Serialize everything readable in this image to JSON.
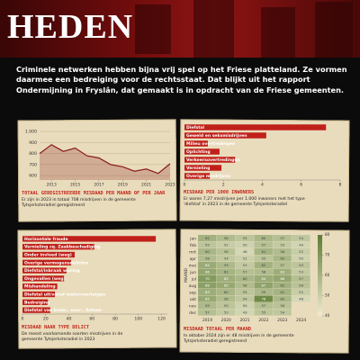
{
  "header": {
    "title": "HEDEN"
  },
  "intro": "Criminele netwerken hebben bijna vrij spel op het Friese platteland. Ze vormen daarmee een bedreiging voor de rechtsstaat. Dat blijkt uit het rapport Ondermijning in Fryslân, dat gemaakt is in opdracht van de Friese gemeenten.",
  "chart_data": [
    {
      "type": "area",
      "title": "TOTAAL GEREGISTREERDE MISDAAD PER MAAND OF PER JAAR",
      "subtitle": "Er zijn in 2023 in totaal 708 misdrijven in de gemeente Tytsjerksteradiel geregistreerd",
      "x": [
        2012,
        2013,
        2014,
        2015,
        2016,
        2017,
        2018,
        2019,
        2020,
        2021,
        2022,
        2023
      ],
      "values": [
        800,
        880,
        820,
        850,
        780,
        760,
        700,
        680,
        640,
        660,
        620,
        708
      ],
      "color": "#8b1a1a",
      "xlim": [
        2012,
        2023
      ],
      "xticks": [
        2013,
        2015,
        2017,
        2019,
        2021,
        2023
      ],
      "ylim": [
        560,
        1050
      ],
      "yticks": [
        600,
        700,
        800,
        900,
        {
          "value": 1000,
          "label": "1.000"
        }
      ],
      "grid": true
    },
    {
      "type": "hbar",
      "title": "MISDAAD PER 1000 INWONERS",
      "subtitle": "Er waren 7,27 misdrijven per 1.000 inwoners met het type 'diefstal' in 2023 in de gemeente Tytsjerksteradiel",
      "categories": [
        "Diefstal",
        "Geweld en seksmisdrijven",
        "Milieu overtredingen",
        "Oplichting",
        "Verkeersovertredingen",
        "Vernieling",
        "Overige misdrijven"
      ],
      "values": [
        7.27,
        4.2,
        1.2,
        1.8,
        2.6,
        1.9,
        1.3
      ],
      "color": "#c0201a",
      "xlim": [
        0,
        8
      ],
      "xticks": [
        0,
        2,
        4,
        6,
        8
      ]
    },
    {
      "type": "hbar",
      "title": "MISDAAD NAAR TYPE DELICT",
      "subtitle": "De meest voorkomende soorten misdrijven in de gemeente Tytsjerksteradiel in 2023",
      "categories": [
        "Horizontale fraude",
        "Vernieling cq. Zaakbeschadiging",
        "Onder invloed (weg)",
        "Overige vermogensdelicten",
        "Diefstal/inbraak woning",
        "Ongevallen (weg)",
        "Mishandeling",
        "Diefstal uit/vanaf motorvoertuigen",
        "Bedreiging",
        "Diefstal van brom-, snor-, fietsen"
      ],
      "values": [
        115,
        62,
        45,
        42,
        38,
        36,
        30,
        28,
        22,
        24
      ],
      "color": "#c0201a",
      "xlim": [
        0,
        125
      ],
      "xticks": [
        0,
        20,
        40,
        60,
        80,
        100,
        120
      ]
    },
    {
      "type": "heatmap",
      "title": "MISDAAD TOTAAL PER MAAND",
      "subtitle": "In oktober 2024 zijn er 48 misdrijven in de gemeente Tytsjerksteradiel geregistreerd",
      "ylabel": "MAAND",
      "categories": [
        2019,
        2020,
        2021,
        2022,
        2023,
        2024
      ],
      "rows": [
        "jan",
        "feb",
        "mrt",
        "apr",
        "mei",
        "jun",
        "jul",
        "aug",
        "sep",
        "okt",
        "nov",
        "dec"
      ],
      "values": [
        [
          62,
          58,
          55,
          60,
          57,
          54
        ],
        [
          55,
          52,
          50,
          57,
          53,
          49
        ],
        [
          60,
          56,
          48,
          61,
          58,
          52
        ],
        [
          58,
          54,
          51,
          55,
          60,
          50
        ],
        [
          64,
          59,
          53,
          62,
          57,
          55
        ],
        [
          66,
          61,
          57,
          58,
          63,
          53
        ],
        [
          70,
          63,
          60,
          64,
          66,
          57
        ],
        [
          68,
          65,
          58,
          67,
          62,
          56
        ],
        [
          63,
          60,
          55,
          59,
          61,
          52
        ],
        [
          65,
          58,
          54,
          76,
          60,
          48
        ],
        [
          59,
          55,
          50,
          57,
          56,
          null
        ],
        [
          57,
          53,
          49,
          55,
          54,
          null
        ]
      ],
      "colors": [
        "#f3eed6",
        "#5f7f37"
      ],
      "clim": [
        40,
        80
      ],
      "cticks": [
        40,
        50,
        60,
        70,
        80
      ]
    }
  ]
}
